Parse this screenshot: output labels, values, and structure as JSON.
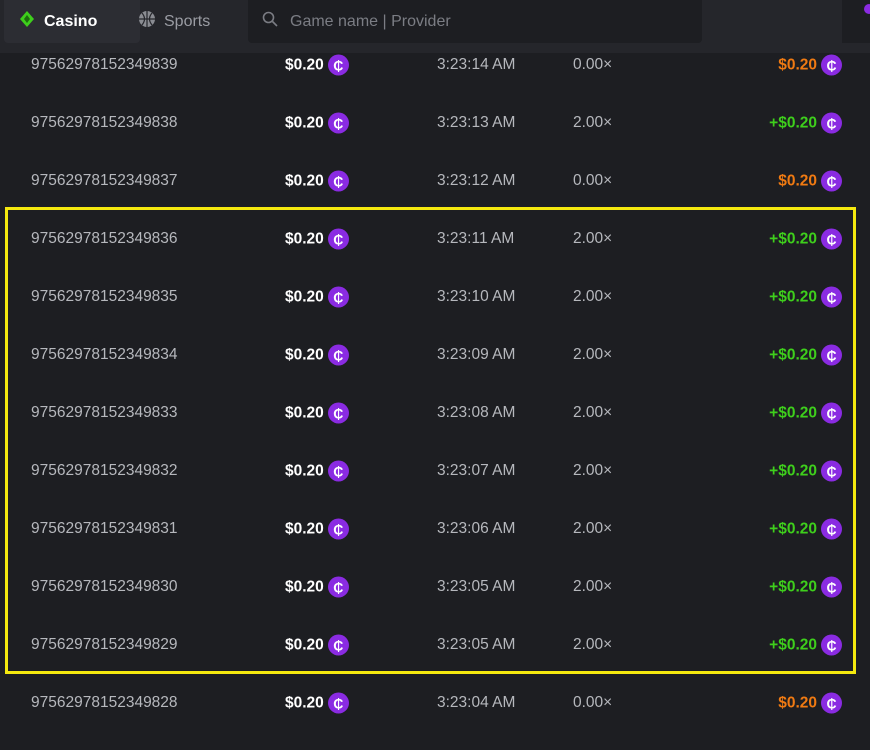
{
  "nav": {
    "casino": "Casino",
    "sports": "Sports",
    "search_placeholder": "Game name | Provider"
  },
  "colors": {
    "win": "#3ecf1c",
    "loss": "#f07a12",
    "coin": "#8a2be2",
    "highlight": "#f5e90f"
  },
  "rows": [
    {
      "id": "97562978152349839",
      "bet": "$0.20",
      "time": "3:23:14 AM",
      "mult": "0.00×",
      "payout": "$0.20",
      "win": false
    },
    {
      "id": "97562978152349838",
      "bet": "$0.20",
      "time": "3:23:13 AM",
      "mult": "2.00×",
      "payout": "+$0.20",
      "win": true
    },
    {
      "id": "97562978152349837",
      "bet": "$0.20",
      "time": "3:23:12 AM",
      "mult": "0.00×",
      "payout": "$0.20",
      "win": false
    },
    {
      "id": "97562978152349836",
      "bet": "$0.20",
      "time": "3:23:11 AM",
      "mult": "2.00×",
      "payout": "+$0.20",
      "win": true
    },
    {
      "id": "97562978152349835",
      "bet": "$0.20",
      "time": "3:23:10 AM",
      "mult": "2.00×",
      "payout": "+$0.20",
      "win": true
    },
    {
      "id": "97562978152349834",
      "bet": "$0.20",
      "time": "3:23:09 AM",
      "mult": "2.00×",
      "payout": "+$0.20",
      "win": true
    },
    {
      "id": "97562978152349833",
      "bet": "$0.20",
      "time": "3:23:08 AM",
      "mult": "2.00×",
      "payout": "+$0.20",
      "win": true
    },
    {
      "id": "97562978152349832",
      "bet": "$0.20",
      "time": "3:23:07 AM",
      "mult": "2.00×",
      "payout": "+$0.20",
      "win": true
    },
    {
      "id": "97562978152349831",
      "bet": "$0.20",
      "time": "3:23:06 AM",
      "mult": "2.00×",
      "payout": "+$0.20",
      "win": true
    },
    {
      "id": "97562978152349830",
      "bet": "$0.20",
      "time": "3:23:05 AM",
      "mult": "2.00×",
      "payout": "+$0.20",
      "win": true
    },
    {
      "id": "97562978152349829",
      "bet": "$0.20",
      "time": "3:23:05 AM",
      "mult": "2.00×",
      "payout": "+$0.20",
      "win": true
    },
    {
      "id": "97562978152349828",
      "bet": "$0.20",
      "time": "3:23:04 AM",
      "mult": "0.00×",
      "payout": "$0.20",
      "win": false
    }
  ]
}
